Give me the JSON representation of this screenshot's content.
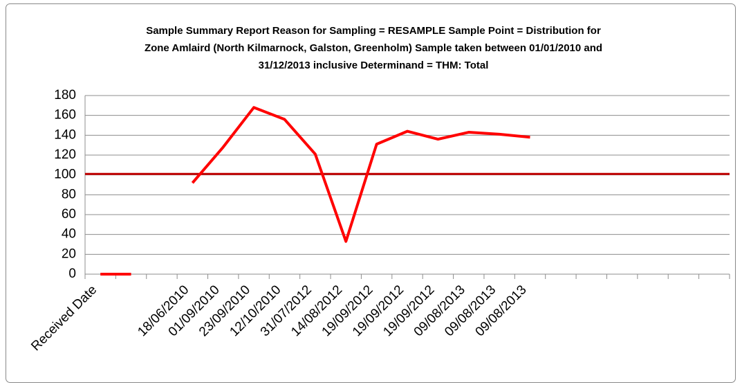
{
  "chart_data": {
    "type": "line",
    "title": [
      "Sample Summary Report Reason for Sampling = RESAMPLE Sample Point = Distribution for",
      "Zone Amlaird (North Kilmarnock, Galston, Greenholm) Sample taken between 01/01/2010 and",
      "31/12/2013 inclusive Determinand = THM: Total"
    ],
    "categories": [
      "Received Date",
      null,
      null,
      "18/06/2010",
      "01/09/2010",
      "23/09/2010",
      "12/10/2010",
      "31/07/2012",
      "14/08/2012",
      "19/09/2012",
      "19/09/2012",
      "19/09/2012",
      "09/08/2013",
      "09/08/2013",
      "09/08/2013",
      null,
      null,
      null,
      null,
      null,
      null
    ],
    "values": [
      0,
      0,
      null,
      92,
      128,
      168,
      156,
      121,
      33,
      131,
      144,
      136,
      143,
      141,
      138,
      null,
      null,
      null,
      null,
      null,
      null
    ],
    "color": "#ff0000",
    "reference_line": {
      "value": 101,
      "color": "#c00000"
    },
    "ylim": [
      0,
      180
    ],
    "yticks": [
      0,
      20,
      40,
      60,
      80,
      100,
      120,
      140,
      160,
      180
    ],
    "grid": true
  }
}
